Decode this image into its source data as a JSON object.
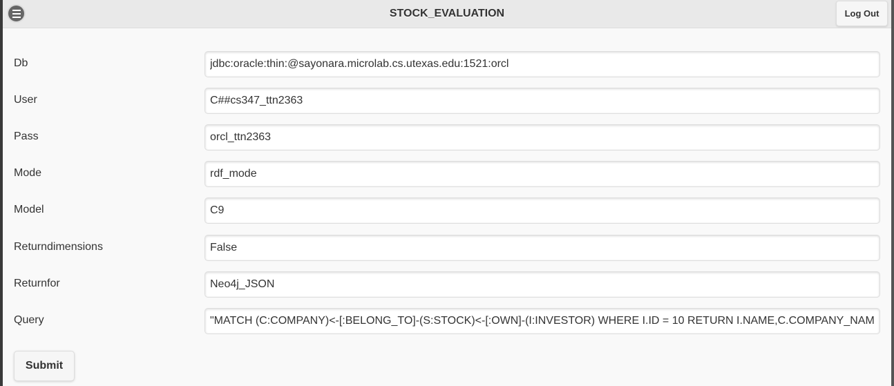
{
  "header": {
    "title": "STOCK_EVALUATION",
    "menu_icon": "hamburger-menu-icon",
    "logout_label": "Log Out"
  },
  "form": {
    "fields": [
      {
        "label": "Db",
        "value": "jdbc:oracle:thin:@sayonara.microlab.cs.utexas.edu:1521:orcl"
      },
      {
        "label": "User",
        "value": "C##cs347_ttn2363"
      },
      {
        "label": "Pass",
        "value": "orcl_ttn2363"
      },
      {
        "label": "Mode",
        "value": "rdf_mode"
      },
      {
        "label": "Model",
        "value": "C9"
      },
      {
        "label": "Returndimensions",
        "value": "False"
      },
      {
        "label": "Returnfor",
        "value": "Neo4j_JSON"
      },
      {
        "label": "Query",
        "value": "\"MATCH (C:COMPANY)<-[:BELONG_TO]-(S:STOCK)<-[:OWN]-(I:INVESTOR) WHERE I.ID = 10 RETURN I.NAME,C.COMPANY_NAME\""
      }
    ],
    "submit_label": "Submit"
  }
}
